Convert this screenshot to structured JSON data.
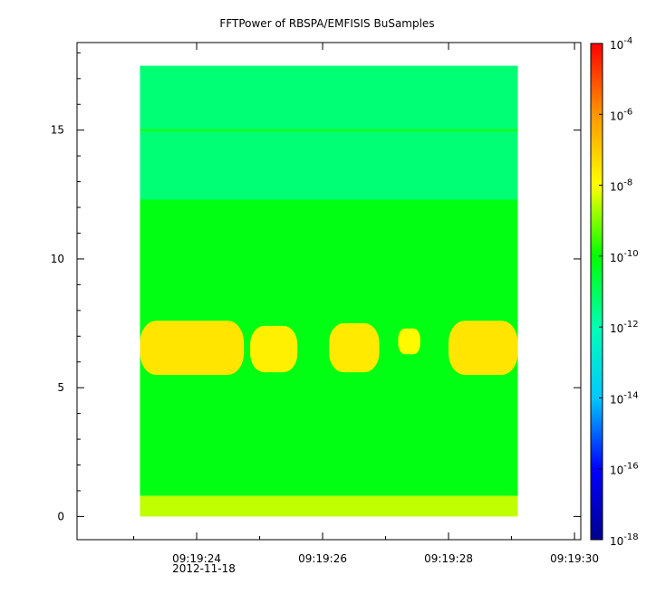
{
  "chart_data": {
    "type": "heatmap",
    "title": "FFTPower of RBSPA/EMFISIS  BuSamples",
    "xlabel": "",
    "ylabel": "",
    "x_ticks": [
      {
        "label": "09:19:24",
        "sec": 24
      },
      {
        "label": "09:19:26",
        "sec": 26
      },
      {
        "label": "09:19:28",
        "sec": 28
      },
      {
        "label": "09:19:30",
        "sec": 30
      }
    ],
    "x_date_label": "2012-11-18",
    "xlim_sec": [
      22.1,
      30.1
    ],
    "data_xrange_sec": [
      23.1,
      29.1
    ],
    "y_ticks": [
      0,
      5,
      10,
      15
    ],
    "ylim": [
      -0.9,
      18.4
    ],
    "data_yrange": [
      0,
      17.5
    ],
    "grid": false,
    "colorbar": {
      "scale": "log",
      "range": [
        1e-18,
        0.0001
      ],
      "tick_bases": [
        "10",
        "10",
        "10",
        "10",
        "10",
        "10",
        "10",
        "10"
      ],
      "tick_exponents": [
        "-4",
        "-6",
        "-8",
        "-10",
        "-12",
        "-14",
        "-16",
        "-18"
      ],
      "tick_values": [
        -4,
        -6,
        -8,
        -10,
        -12,
        -14,
        -16,
        -18
      ],
      "colormap": [
        "#00008c",
        "#0000ff",
        "#00c8ff",
        "#00ffb4",
        "#00ff00",
        "#ffff00",
        "#ff9600",
        "#ff0000"
      ]
    },
    "bands": [
      {
        "y0": 12.3,
        "y1": 17.5,
        "log_power": -11.3
      },
      {
        "y0": 0.8,
        "y1": 12.3,
        "log_power": -10.2
      },
      {
        "y0": 0.0,
        "y1": 0.8,
        "log_power": -8.5
      }
    ],
    "lines": [
      {
        "y": 15.0,
        "log_power": -9.8
      }
    ],
    "bursts": [
      {
        "t0": 23.1,
        "t1": 24.75,
        "y0": 5.5,
        "y1": 7.6,
        "log_power": -7.5
      },
      {
        "t0": 24.85,
        "t1": 25.6,
        "y0": 5.6,
        "y1": 7.4,
        "log_power": -7.7
      },
      {
        "t0": 26.1,
        "t1": 26.9,
        "y0": 5.6,
        "y1": 7.5,
        "log_power": -7.6
      },
      {
        "t0": 27.2,
        "t1": 27.55,
        "y0": 6.3,
        "y1": 7.3,
        "log_power": -7.9
      },
      {
        "t0": 28.0,
        "t1": 29.1,
        "y0": 5.5,
        "y1": 7.6,
        "log_power": -7.5
      }
    ]
  }
}
